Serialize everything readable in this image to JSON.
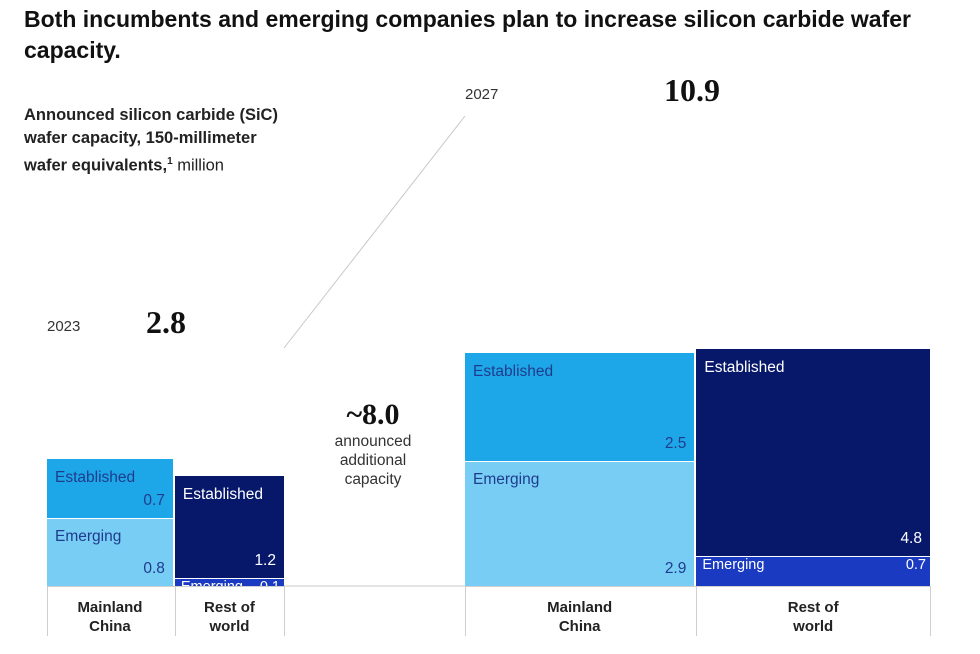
{
  "title": "Both incumbents and emerging companies plan to increase silicon carbide wafer capacity.",
  "subtitle": {
    "bold": "Announced silicon carbide (SiC) wafer capacity, 150-millimeter wafer equivalents,",
    "footnote_mark": "1",
    "unit": "million"
  },
  "annotation": {
    "value": "~8.0",
    "text_lines": [
      "announced",
      "additional",
      "capacity"
    ]
  },
  "colors": {
    "mainland_established": "#1EA7E8",
    "mainland_emerging": "#78CDF5",
    "row_established": "#07186B",
    "row_emerging": "#1A3AC2",
    "mainland_text": "#1E3C8C",
    "row_text": "#FFFFFF"
  },
  "chart_data": {
    "type": "bar",
    "subtype": "stacked-marimekko",
    "categories": [
      "Mainland China",
      "Rest of world"
    ],
    "category_labels": [
      [
        "Mainland",
        "China"
      ],
      [
        "Rest of",
        "world"
      ]
    ],
    "series_names": [
      "Established",
      "Emerging"
    ],
    "panels": [
      {
        "year": "2023",
        "total": 2.8,
        "total_label": "2.8",
        "series": [
          {
            "name": "Established",
            "values": [
              0.7,
              1.2
            ],
            "labels": [
              "0.7",
              "1.2"
            ]
          },
          {
            "name": "Emerging",
            "values": [
              0.8,
              0.1
            ],
            "labels": [
              "0.8",
              "0.1"
            ]
          }
        ]
      },
      {
        "year": "2027",
        "total": 10.9,
        "total_label": "10.9",
        "series": [
          {
            "name": "Established",
            "values": [
              2.5,
              4.8
            ],
            "labels": [
              "2.5",
              "4.8"
            ]
          },
          {
            "name": "Emerging",
            "values": [
              2.9,
              0.7
            ],
            "labels": [
              "2.9",
              "0.7"
            ]
          }
        ]
      }
    ],
    "additional_capacity": "~8.0",
    "legend": "none (labels placed inside bars)"
  }
}
